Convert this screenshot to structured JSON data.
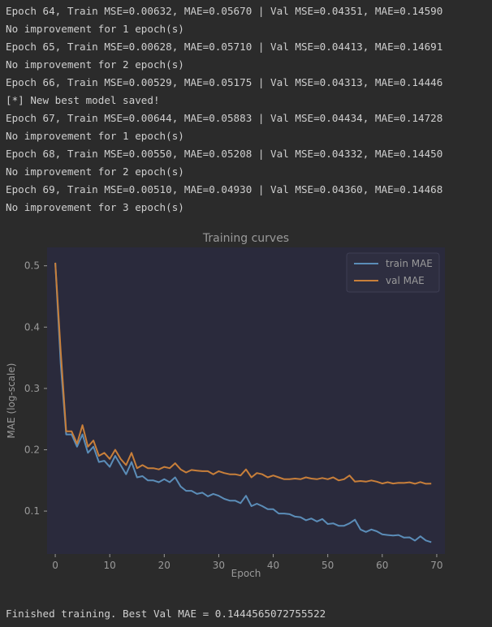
{
  "console": {
    "lines": [
      "Epoch 64, Train MSE=0.00632, MAE=0.05670 | Val MSE=0.04351, MAE=0.14590",
      "No improvement for 1 epoch(s)",
      "Epoch 65, Train MSE=0.00628, MAE=0.05710 | Val MSE=0.04413, MAE=0.14691",
      "No improvement for 2 epoch(s)",
      "Epoch 66, Train MSE=0.00529, MAE=0.05175 | Val MSE=0.04313, MAE=0.14446",
      "[*] New best model saved!",
      "Epoch 67, Train MSE=0.00644, MAE=0.05883 | Val MSE=0.04434, MAE=0.14728",
      "No improvement for 1 epoch(s)",
      "Epoch 68, Train MSE=0.00550, MAE=0.05208 | Val MSE=0.04332, MAE=0.14450",
      "No improvement for 2 epoch(s)",
      "Epoch 69, Train MSE=0.00510, MAE=0.04930 | Val MSE=0.04360, MAE=0.14468",
      "No improvement for 3 epoch(s)"
    ],
    "footer": "Finished training. Best Val MAE = 0.1444565072755522"
  },
  "colors": {
    "background": "#2b2b2b",
    "plot_bg": "#2a2a3c",
    "text": "#9a9a9a",
    "train": "#5b8db8",
    "val": "#c87f3a"
  },
  "chart_data": {
    "type": "line",
    "title": "Training curves",
    "xlabel": "Epoch",
    "ylabel": "MAE (log-scale)",
    "xlim": [
      -1.5,
      71.5
    ],
    "ylim": [
      0.03,
      0.53
    ],
    "xticks": [
      0,
      10,
      20,
      30,
      40,
      50,
      60,
      70
    ],
    "yticks": [
      0.1,
      0.2,
      0.3,
      0.4,
      0.5
    ],
    "legend_position": "top-right",
    "grid": false,
    "series": [
      {
        "name": "train MAE",
        "color": "#5b8db8",
        "x": [
          0,
          1,
          2,
          3,
          4,
          5,
          6,
          7,
          8,
          9,
          10,
          11,
          12,
          13,
          14,
          15,
          16,
          17,
          18,
          19,
          20,
          21,
          22,
          23,
          24,
          25,
          26,
          27,
          28,
          29,
          30,
          31,
          32,
          33,
          34,
          35,
          36,
          37,
          38,
          39,
          40,
          41,
          42,
          43,
          44,
          45,
          46,
          47,
          48,
          49,
          50,
          51,
          52,
          53,
          54,
          55,
          56,
          57,
          58,
          59,
          60,
          61,
          62,
          63,
          64,
          65,
          66,
          67,
          68,
          69
        ],
        "values": [
          0.505,
          0.34,
          0.225,
          0.225,
          0.205,
          0.225,
          0.195,
          0.205,
          0.18,
          0.182,
          0.172,
          0.19,
          0.175,
          0.16,
          0.18,
          0.155,
          0.157,
          0.15,
          0.15,
          0.147,
          0.152,
          0.147,
          0.155,
          0.14,
          0.133,
          0.133,
          0.128,
          0.13,
          0.124,
          0.128,
          0.125,
          0.12,
          0.117,
          0.117,
          0.113,
          0.125,
          0.108,
          0.112,
          0.108,
          0.103,
          0.103,
          0.096,
          0.096,
          0.095,
          0.091,
          0.09,
          0.085,
          0.088,
          0.083,
          0.087,
          0.079,
          0.08,
          0.076,
          0.076,
          0.08,
          0.086,
          0.07,
          0.066,
          0.07,
          0.067,
          0.062,
          0.061,
          0.06,
          0.061,
          0.0567,
          0.0571,
          0.0518,
          0.0588,
          0.0521,
          0.0493
        ]
      },
      {
        "name": "val MAE",
        "color": "#c87f3a",
        "x": [
          0,
          1,
          2,
          3,
          4,
          5,
          6,
          7,
          8,
          9,
          10,
          11,
          12,
          13,
          14,
          15,
          16,
          17,
          18,
          19,
          20,
          21,
          22,
          23,
          24,
          25,
          26,
          27,
          28,
          29,
          30,
          31,
          32,
          33,
          34,
          35,
          36,
          37,
          38,
          39,
          40,
          41,
          42,
          43,
          44,
          45,
          46,
          47,
          48,
          49,
          50,
          51,
          52,
          53,
          54,
          55,
          56,
          57,
          58,
          59,
          60,
          61,
          62,
          63,
          64,
          65,
          66,
          67,
          68,
          69
        ],
        "values": [
          0.505,
          0.36,
          0.23,
          0.23,
          0.21,
          0.24,
          0.205,
          0.215,
          0.19,
          0.195,
          0.185,
          0.2,
          0.185,
          0.175,
          0.195,
          0.17,
          0.175,
          0.17,
          0.17,
          0.168,
          0.172,
          0.17,
          0.178,
          0.168,
          0.163,
          0.167,
          0.166,
          0.165,
          0.165,
          0.16,
          0.165,
          0.162,
          0.16,
          0.16,
          0.158,
          0.168,
          0.155,
          0.162,
          0.16,
          0.155,
          0.158,
          0.155,
          0.152,
          0.152,
          0.153,
          0.152,
          0.155,
          0.153,
          0.152,
          0.154,
          0.152,
          0.155,
          0.15,
          0.152,
          0.158,
          0.148,
          0.149,
          0.148,
          0.15,
          0.148,
          0.145,
          0.147,
          0.145,
          0.146,
          0.1459,
          0.1469,
          0.1445,
          0.1473,
          0.1445,
          0.1447
        ]
      }
    ]
  }
}
